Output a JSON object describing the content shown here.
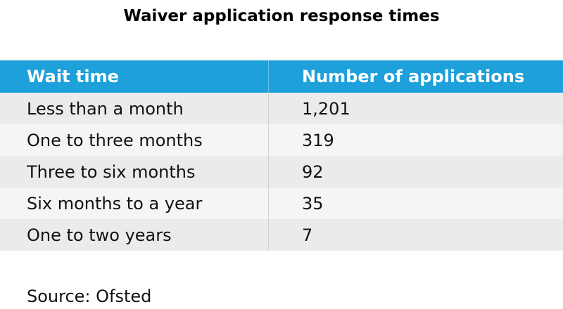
{
  "chart_data": {
    "type": "table",
    "title": "Waiver application response times",
    "columns": [
      "Wait time",
      "Number of applications"
    ],
    "rows": [
      [
        "Less than a month",
        "1,201"
      ],
      [
        "One to three months",
        "319"
      ],
      [
        "Three to six months",
        "92"
      ],
      [
        "Six months to a year",
        "35"
      ],
      [
        "One to two years",
        "7"
      ]
    ],
    "values": [
      1201,
      319,
      92,
      35,
      7
    ],
    "source": "Source: Ofsted"
  },
  "colors": {
    "header_background": "#1ea0da",
    "header_text": "#ffffff",
    "row_background": "#ebebeb",
    "row_background_alt": "#f5f5f5"
  }
}
